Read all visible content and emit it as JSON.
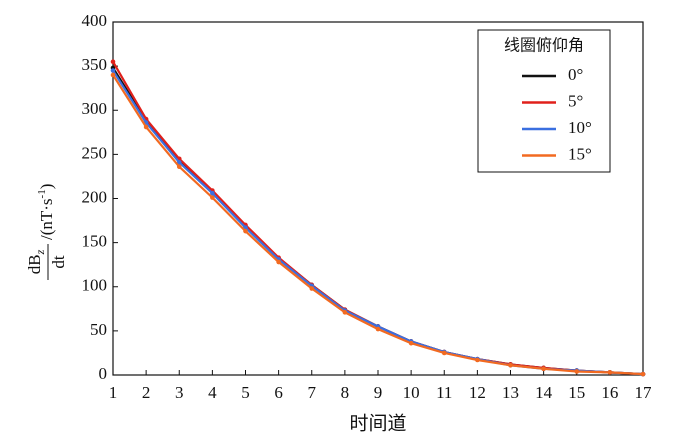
{
  "chart_data": {
    "type": "line",
    "x_label": "时间道",
    "y_label": {
      "numerator": "dB",
      "subscript": "z",
      "denominator": "dt",
      "unit": "/(nT·s",
      "exponent": "-1",
      "close": ")"
    },
    "x": [
      1,
      2,
      3,
      4,
      5,
      6,
      7,
      8,
      9,
      10,
      11,
      12,
      13,
      14,
      15,
      16,
      17
    ],
    "xlim": [
      1,
      17
    ],
    "xticks": [
      1,
      2,
      3,
      4,
      5,
      6,
      7,
      8,
      9,
      10,
      11,
      12,
      13,
      14,
      15,
      16,
      17
    ],
    "ylim": [
      0,
      400
    ],
    "yticks": [
      0,
      50,
      100,
      150,
      200,
      250,
      300,
      350,
      400
    ],
    "grid": false,
    "legend": "upper right",
    "legend_title": "线圈俯仰角",
    "series": [
      {
        "name": "0°",
        "color": "#111111",
        "values": [
          348,
          288,
          243,
          208,
          168,
          132,
          102,
          74,
          55,
          38,
          26,
          18,
          12,
          8,
          5,
          3,
          1
        ]
      },
      {
        "name": "5°",
        "color": "#e0201b",
        "values": [
          355,
          290,
          245,
          209,
          170,
          133,
          102,
          74,
          55,
          38,
          26,
          18,
          12,
          8,
          5,
          3,
          1
        ]
      },
      {
        "name": "10°",
        "color": "#3a6fe0",
        "values": [
          345,
          286,
          241,
          206,
          167,
          131,
          101,
          73,
          55,
          38,
          26,
          18,
          11,
          7,
          5,
          3,
          1
        ]
      },
      {
        "name": "15°",
        "color": "#f26a21",
        "values": [
          340,
          281,
          236,
          201,
          163,
          128,
          98,
          71,
          52,
          36,
          25,
          17,
          11,
          7,
          4,
          3,
          1
        ]
      }
    ]
  }
}
